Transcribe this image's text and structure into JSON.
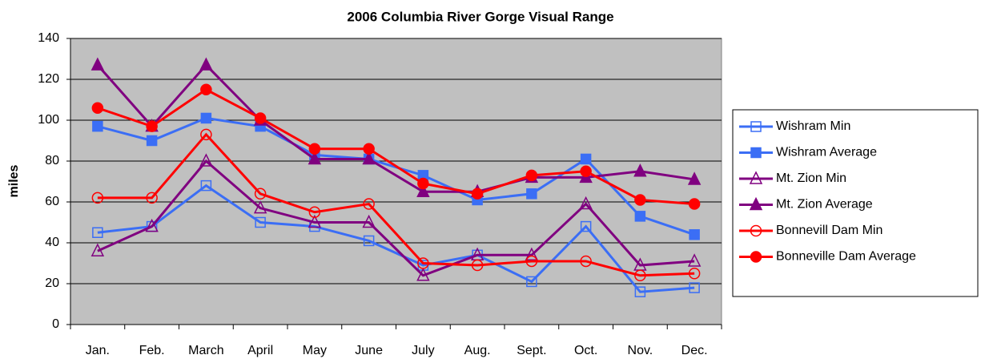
{
  "chart_data": {
    "type": "line",
    "title": "2006 Columbia River Gorge Visual Range",
    "y_label": "miles",
    "categories": [
      "Jan.",
      "Feb.",
      "March",
      "April",
      "May",
      "June",
      "July",
      "Aug.",
      "Sept.",
      "Oct.",
      "Nov.",
      "Dec."
    ],
    "series": [
      {
        "name": "Wishram Min",
        "color": "#3b6ef5",
        "marker": "square-open",
        "values": [
          45,
          48,
          68,
          50,
          48,
          41,
          29,
          34,
          21,
          48,
          16,
          18
        ]
      },
      {
        "name": "Wishram Average",
        "color": "#3b6ef5",
        "marker": "square-filled",
        "values": [
          97,
          90,
          101,
          97,
          83,
          81,
          73,
          61,
          64,
          81,
          53,
          44
        ]
      },
      {
        "name": "Mt. Zion Min",
        "color": "#800080",
        "marker": "triangle-open",
        "values": [
          36,
          48,
          80,
          57,
          50,
          50,
          24,
          34,
          34,
          59,
          29,
          31
        ]
      },
      {
        "name": "Mt. Zion Average",
        "color": "#800080",
        "marker": "triangle-filled",
        "values": [
          127,
          97,
          127,
          100,
          81,
          81,
          65,
          65,
          72,
          72,
          75,
          71
        ]
      },
      {
        "name": "Bonnevill Dam Min",
        "color": "#ff0000",
        "marker": "circle-open",
        "values": [
          62,
          62,
          93,
          64,
          55,
          59,
          30,
          29,
          31,
          31,
          24,
          25
        ]
      },
      {
        "name": "Bonneville Dam Average",
        "color": "#ff0000",
        "marker": "circle-filled",
        "values": [
          106,
          97,
          115,
          101,
          86,
          86,
          69,
          64,
          73,
          75,
          61,
          59
        ]
      }
    ],
    "ylim": [
      0,
      140
    ],
    "yticks": [
      0,
      20,
      40,
      60,
      80,
      100,
      120,
      140
    ],
    "grid": true,
    "legend": "right",
    "plot_background": "#c0c0c0"
  }
}
